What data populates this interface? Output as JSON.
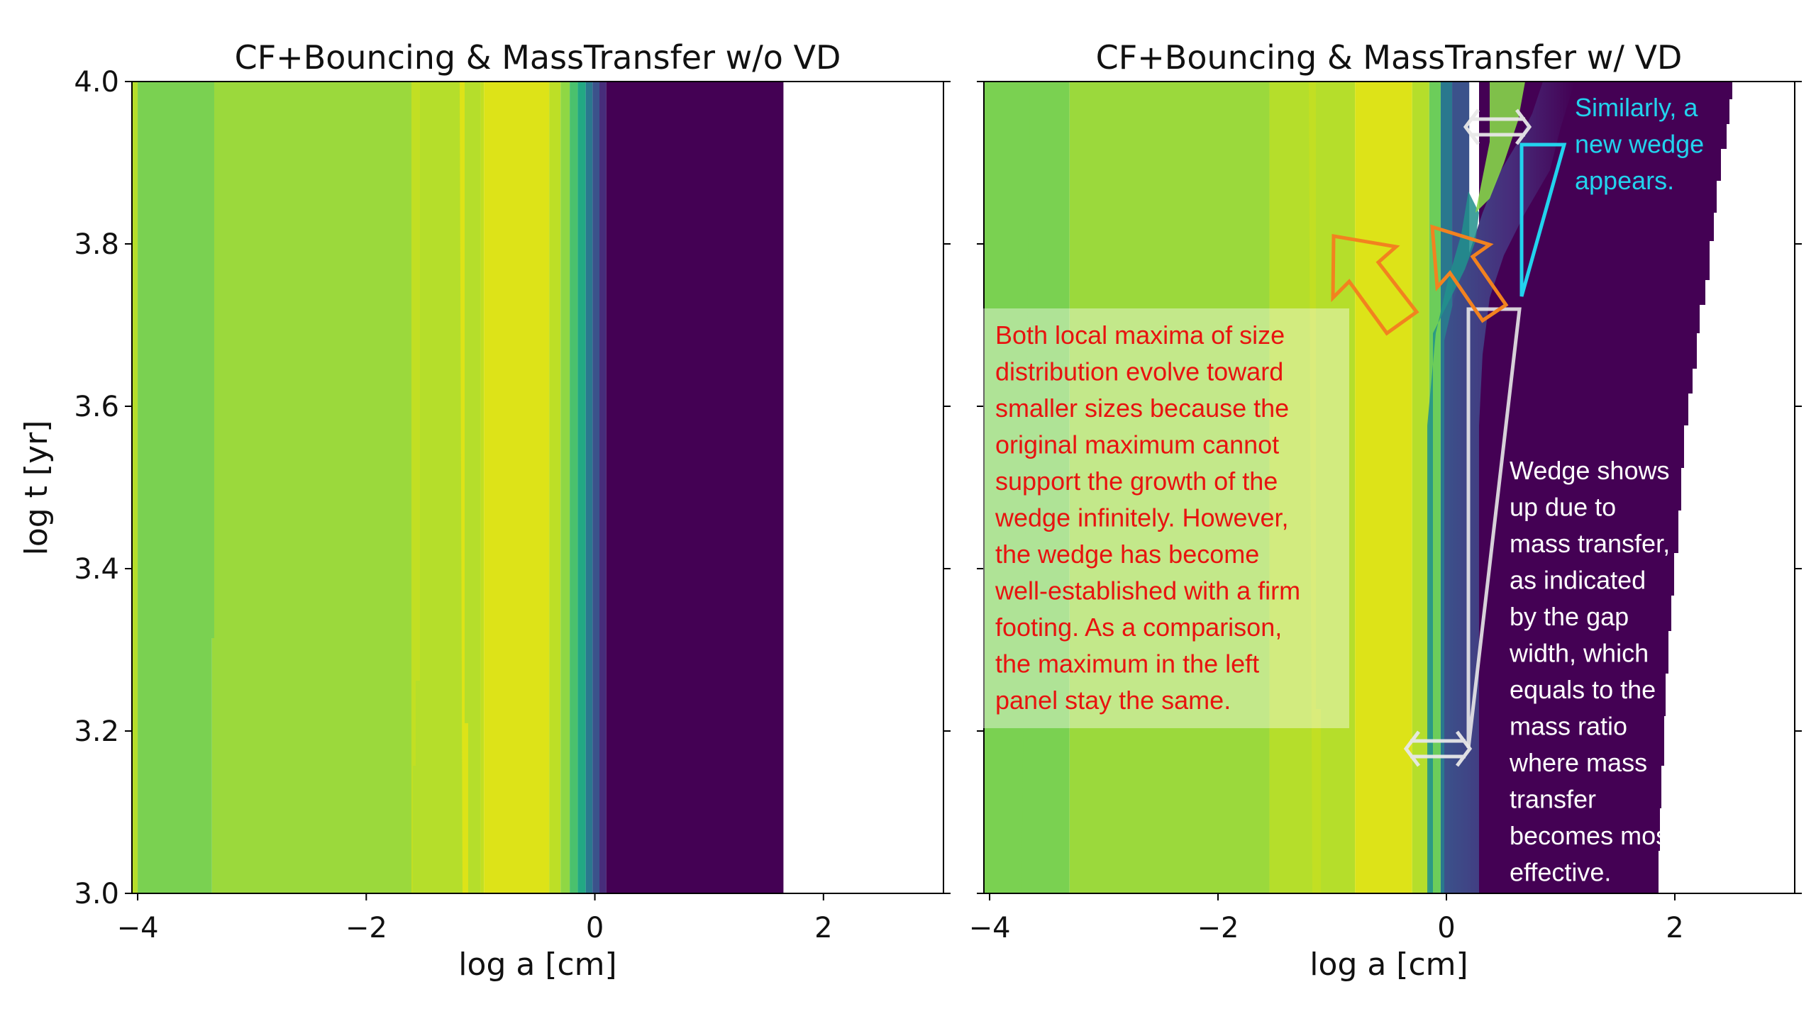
{
  "colors": {
    "viridis_purple": "#440154",
    "annotation_red": "#e8130f",
    "annotation_cyan": "#22d3ee",
    "arrow_orange": "#f2821f",
    "annotation_white": "#ffffff"
  },
  "chart_data": [
    {
      "type": "heatmap",
      "title": "CF+Bouncing & MassTransfer w/o VD",
      "xlabel": "log a [cm]",
      "ylabel": "log t [yr]",
      "xlim": [
        -4.05,
        3.05
      ],
      "ylim": [
        3.0,
        4.0
      ],
      "xticks": [
        -4,
        -2,
        0,
        2
      ],
      "xtick_labels": [
        "−4",
        "−2",
        "0",
        "2"
      ],
      "yticks": [
        3.0,
        3.2,
        3.4,
        3.6,
        3.8,
        4.0
      ],
      "ytick_labels": [
        "3.0",
        "3.2",
        "3.4",
        "3.6",
        "3.8",
        "4.0"
      ],
      "colormap": "viridis",
      "colored_extent_x": [
        -4.05,
        1.65
      ],
      "bands": [
        {
          "x0": -4.05,
          "x1": -4.0,
          "color": "#b5de2b"
        },
        {
          "x0": -4.0,
          "x1": -3.35,
          "color": "#7ad151"
        },
        {
          "x0": -3.35,
          "x1": -1.6,
          "color": "#9bd93c"
        },
        {
          "x0": -1.6,
          "x1": -1.0,
          "color": "#b5de2b"
        },
        {
          "x0": -1.0,
          "x1": -0.97,
          "color": "#c2df23"
        },
        {
          "x0": -0.97,
          "x1": -0.4,
          "color": "#dde318"
        },
        {
          "x0": -0.4,
          "x1": -0.3,
          "color": "#bddf26"
        },
        {
          "x0": -0.3,
          "x1": -0.22,
          "color": "#8fd744"
        },
        {
          "x0": -0.22,
          "x1": -0.15,
          "color": "#4ac16d"
        },
        {
          "x0": -0.15,
          "x1": -0.08,
          "color": "#22a884"
        },
        {
          "x0": -0.08,
          "x1": -0.02,
          "color": "#2a788e"
        },
        {
          "x0": -0.02,
          "x1": 0.04,
          "color": "#3b528b"
        },
        {
          "x0": 0.04,
          "x1": 0.1,
          "color": "#472d7b"
        },
        {
          "x0": 0.1,
          "x1": 1.65,
          "color": "#440154"
        }
      ]
    },
    {
      "type": "heatmap",
      "title": "CF+Bouncing & MassTransfer w/ VD",
      "xlabel": "log a [cm]",
      "ylabel": "",
      "xlim": [
        -4.05,
        3.05
      ],
      "ylim": [
        3.0,
        4.0
      ],
      "xticks": [
        -4,
        -2,
        0,
        2
      ],
      "xtick_labels": [
        "−4",
        "−2",
        "0",
        "2"
      ],
      "yticks": [
        3.0,
        3.2,
        3.4,
        3.6,
        3.8,
        4.0
      ],
      "ytick_labels": [
        "",
        "",
        "",
        "",
        "",
        ""
      ],
      "colormap": "viridis",
      "colored_extent_x": {
        "at_t_3.0": 1.88,
        "at_t_4.0": 2.5
      },
      "bands": [
        {
          "x0": -4.05,
          "x1": -3.3,
          "color": "#7ad151"
        },
        {
          "x0": -3.3,
          "x1": -1.55,
          "color": "#9bd93c"
        },
        {
          "x0": -1.55,
          "x1": -0.8,
          "color": "#b5de2b"
        },
        {
          "x0": -0.8,
          "x1": -0.3,
          "color": "#dde318"
        },
        {
          "x0": -0.3,
          "x1": -0.15,
          "color": "#b5de2b"
        },
        {
          "x0": -0.15,
          "x1": -0.05,
          "color": "#6ccd5a"
        },
        {
          "x0": -0.05,
          "x1": 0.05,
          "color": "#2a788e"
        },
        {
          "x0": 0.05,
          "x1": 0.2,
          "color": "#3b528b"
        }
      ],
      "annotations": [
        {
          "id": "red",
          "lines": [
            "Both local maxima of size",
            "distribution  evolve toward",
            "smaller sizes because the",
            "original maximum cannot",
            "support the growth of the",
            "wedge infinitely. However,",
            "the wedge has become",
            "well-established with a firm",
            "footing. As a comparison,",
            "the maximum in the left",
            "panel stay the same."
          ]
        },
        {
          "id": "white",
          "lines": [
            "Wedge shows",
            "up due to",
            "mass transfer,",
            "as indicated",
            "by the gap",
            "width, which",
            "equals to the",
            "mass ratio",
            "where mass",
            "transfer",
            "becomes most",
            "effective."
          ]
        },
        {
          "id": "cyan",
          "lines": [
            "Similarly, a",
            "new wedge",
            "appears."
          ]
        }
      ]
    }
  ]
}
